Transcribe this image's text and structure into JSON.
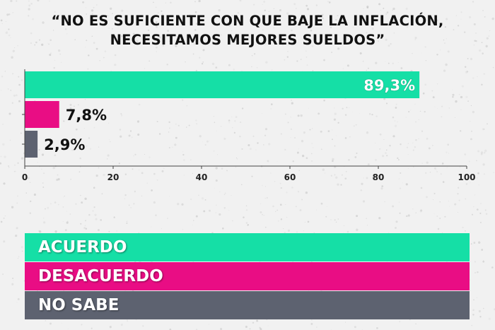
{
  "title": {
    "line1": "“NO ES SUFICIENTE CON QUE BAJE LA INFLACIÓN,",
    "line2": "NECESITAMOS MEJORES SUELDOS”"
  },
  "colors": {
    "acuerdo": "#15dfa6",
    "desacuerdo": "#e90d84",
    "no_sabe": "#5d6270",
    "background": "#f1f1f1",
    "axis": "#444444"
  },
  "chart_data": {
    "type": "bar",
    "orientation": "horizontal",
    "title": "“NO ES SUFICIENTE CON QUE BAJE LA INFLACIÓN, NECESITAMOS MEJORES SUELDOS”",
    "categories": [
      "ACUERDO",
      "DESACUERDO",
      "NO SABE"
    ],
    "values": [
      89.3,
      7.8,
      2.9
    ],
    "value_labels": [
      "89,3%",
      "7,8%",
      "2,9%"
    ],
    "xlim": [
      0,
      100
    ],
    "xticks": [
      0,
      20,
      40,
      60,
      80,
      100
    ],
    "xtick_labels": [
      "0",
      "20",
      "40",
      "60",
      "80",
      "100"
    ],
    "grid": false,
    "legend": "bottom"
  },
  "legend": {
    "items": [
      {
        "label": "ACUERDO",
        "color": "#15dfa6"
      },
      {
        "label": "DESACUERDO",
        "color": "#e90d84"
      },
      {
        "label": "NO SABE",
        "color": "#5d6270"
      }
    ]
  }
}
